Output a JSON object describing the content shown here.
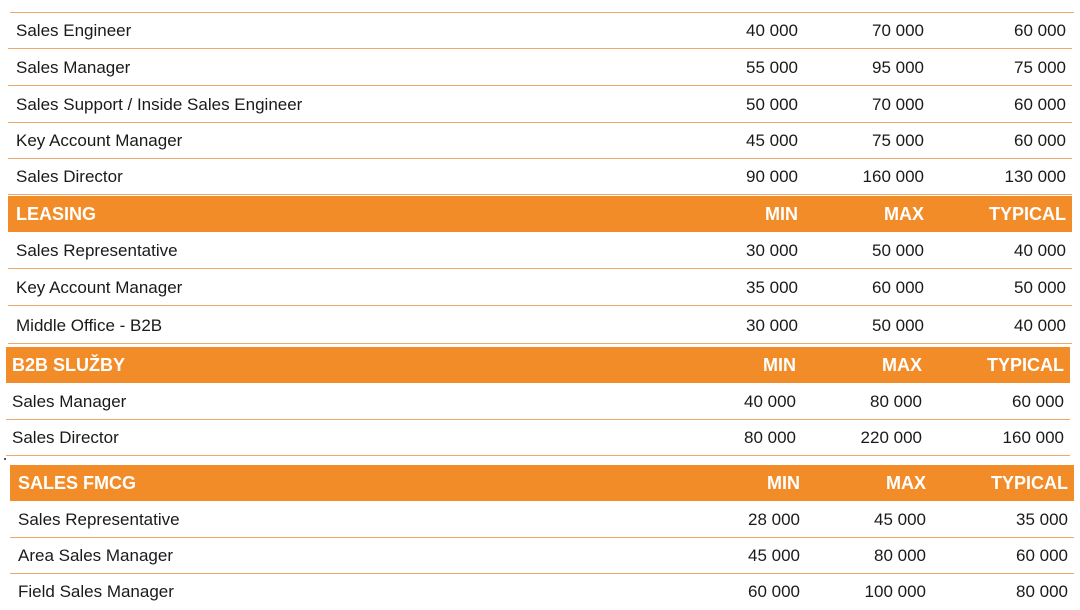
{
  "sections": [
    {
      "title": "",
      "rows": [
        {
          "role": "Sales Engineer",
          "min": "40 000",
          "max": "70 000",
          "typical": "60 000"
        },
        {
          "role": "Sales Manager",
          "min": "55 000",
          "max": "95 000",
          "typical": "75 000"
        },
        {
          "role": "Sales Support / Inside Sales Engineer",
          "min": "50 000",
          "max": "70 000",
          "typical": "60 000"
        },
        {
          "role": "Key Account Manager",
          "min": "45 000",
          "max": "75 000",
          "typical": "60 000"
        },
        {
          "role": "Sales Director",
          "min": "90 000",
          "max": "160 000",
          "typical": "130 000"
        }
      ]
    },
    {
      "title": "LEASING",
      "col_min": "MIN",
      "col_max": "MAX",
      "col_typical": "TYPICAL",
      "rows": [
        {
          "role": "Sales Representative",
          "min": "30 000",
          "max": "50 000",
          "typical": "40 000"
        },
        {
          "role": "Key Account Manager",
          "min": "35 000",
          "max": "60 000",
          "typical": "50 000"
        },
        {
          "role": "Middle Office - B2B",
          "min": "30 000",
          "max": "50 000",
          "typical": "40 000"
        }
      ]
    },
    {
      "title": "B2B SLUŽBY",
      "col_min": "MIN",
      "col_max": "MAX",
      "col_typical": "TYPICAL",
      "rows": [
        {
          "role": "Sales Manager",
          "min": "40 000",
          "max": "80 000",
          "typical": "60 000"
        },
        {
          "role": "Sales Director",
          "min": "80 000",
          "max": "220 000",
          "typical": "160 000"
        }
      ]
    },
    {
      "title": "SALES FMCG",
      "col_min": "MIN",
      "col_max": "MAX",
      "col_typical": "TYPICAL",
      "rows": [
        {
          "role": "Sales Representative",
          "min": "28 000",
          "max": "45 000",
          "typical": "35 000"
        },
        {
          "role": "Area Sales Manager",
          "min": "45 000",
          "max": "80 000",
          "typical": "60 000"
        },
        {
          "role": "Field Sales Manager",
          "min": "60 000",
          "max": "100 000",
          "typical": "80 000"
        }
      ]
    }
  ],
  "colors": {
    "header_bg": "#f28c28",
    "header_text": "#ffffff",
    "rule": "#f0a86a"
  }
}
